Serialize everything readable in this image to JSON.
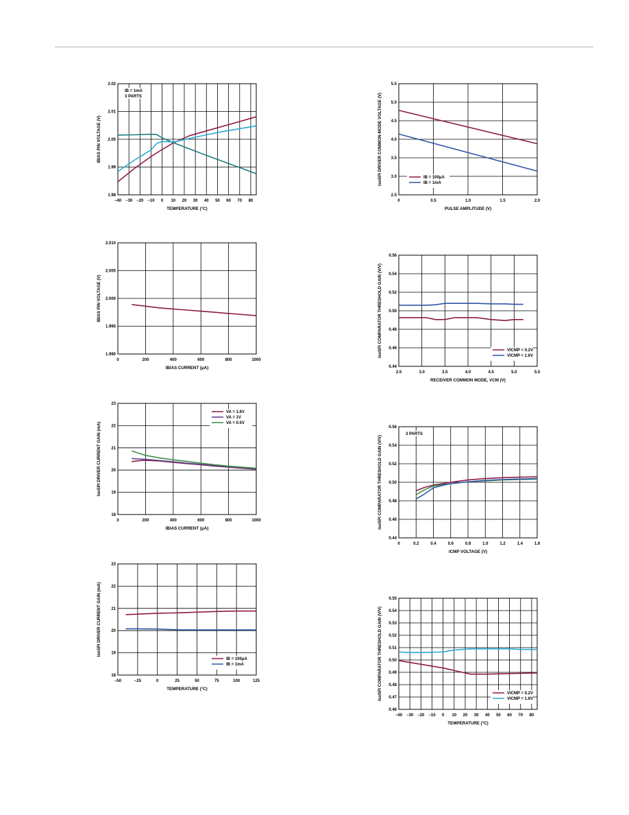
{
  "colors": {
    "red": "#8b1a45",
    "blue": "#2e55a8",
    "teal": "#1c7c7d",
    "cyan": "#29aad4",
    "green": "#3a8f48",
    "purple": "#5c3f8e",
    "grid": "#000000"
  },
  "chart_data": [
    {
      "id": "c1",
      "type": "line",
      "xlabel": "TEMPERATURE (°C)",
      "ylabel": "IBIAS PIN VOLTAGE (V)",
      "xlim": [
        -40,
        85
      ],
      "ylim": [
        1.98,
        2.02
      ],
      "xticks": [
        -40,
        -30,
        -20,
        -10,
        0,
        10,
        20,
        30,
        40,
        50,
        60,
        70,
        80
      ],
      "xticklabels": [
        "−40",
        "−30",
        "−20",
        "−10",
        "0",
        "10",
        "20",
        "30",
        "40",
        "50",
        "60",
        "70",
        "80"
      ],
      "yticks": [
        1.98,
        1.99,
        2.0,
        2.01,
        2.02
      ],
      "yticklabels": [
        "1.98",
        "1.99",
        "2.00",
        "2.01",
        "2.02"
      ],
      "annotation": [
        "IB = 1mA",
        "3 PARTS"
      ],
      "series": [
        {
          "color": "red",
          "x": [
            -40,
            -25,
            -10,
            0,
            10,
            25,
            40,
            55,
            70,
            85
          ],
          "y": [
            1.9847,
            1.9895,
            1.9938,
            1.9963,
            1.9987,
            2.0013,
            2.003,
            2.0047,
            2.0064,
            2.0081
          ]
        },
        {
          "color": "teal",
          "x": [
            -40,
            -25,
            -10,
            -5,
            0,
            10,
            25,
            40,
            55,
            70,
            85
          ],
          "y": [
            2.0015,
            2.0016,
            2.0018,
            2.0017,
            2.0005,
            1.9988,
            1.9965,
            1.9942,
            1.992,
            1.9898,
            1.9876
          ]
        },
        {
          "color": "cyan",
          "x": [
            -40,
            -25,
            -10,
            -5,
            0,
            10,
            25,
            40,
            55,
            70,
            85
          ],
          "y": [
            1.9884,
            1.9925,
            1.9962,
            1.9985,
            1.9992,
            1.999,
            2.0003,
            2.0016,
            2.0028,
            2.0038,
            2.0048
          ]
        }
      ]
    },
    {
      "id": "c2",
      "type": "line",
      "xlabel": "PULSE AMPLITUDE (V)",
      "ylabel": "IsoSPI DRIVER COMMON-MODE VOLTAGE (V)",
      "xlim": [
        0,
        2.0
      ],
      "ylim": [
        2.5,
        5.5
      ],
      "xticks": [
        0,
        0.5,
        1.0,
        1.5,
        2.0
      ],
      "xticklabels": [
        "0",
        "0.5",
        "1.0",
        "1.5",
        "2.0"
      ],
      "yticks": [
        2.5,
        3.0,
        3.5,
        4.0,
        4.5,
        5.0,
        5.5
      ],
      "yticklabels": [
        "2.5",
        "3.0",
        "3.5",
        "4.0",
        "4.5",
        "5.0",
        "5.5"
      ],
      "legend": "bottom-left",
      "series": [
        {
          "name": "IB = 100μA",
          "color": "red",
          "x": [
            0,
            2.0
          ],
          "y": [
            4.78,
            3.88
          ]
        },
        {
          "name": "IB = 1mA",
          "color": "blue",
          "x": [
            0,
            2.0
          ],
          "y": [
            4.14,
            3.14
          ]
        }
      ]
    },
    {
      "id": "c3",
      "type": "line",
      "xlabel": "IBIAS CURRENT (μA)",
      "ylabel": "IBIAS PIN VOLTAGE (V)",
      "xlim": [
        0,
        1000
      ],
      "ylim": [
        1.99,
        2.01
      ],
      "xticks": [
        0,
        200,
        400,
        600,
        800,
        1000
      ],
      "xticklabels": [
        "0",
        "200",
        "400",
        "600",
        "800",
        "1000"
      ],
      "yticks": [
        1.99,
        1.995,
        2.0,
        2.005,
        2.01
      ],
      "yticklabels": [
        "1.990",
        "1.995",
        "2.000",
        "2.005",
        "2.010"
      ],
      "series": [
        {
          "color": "red",
          "x": [
            100,
            200,
            300,
            400,
            500,
            600,
            700,
            800,
            900,
            1000
          ],
          "y": [
            1.9989,
            1.9986,
            1.9983,
            1.9981,
            1.9979,
            1.9977,
            1.9975,
            1.9973,
            1.9971,
            1.9969
          ]
        }
      ]
    },
    {
      "id": "c4",
      "type": "line",
      "xlabel": "RECEIVER COMMON MODE, VCM (V)",
      "ylabel": "IsoSPI COMPARATOR THRESHOLD GAIN (V/V)",
      "xlim": [
        2.5,
        5.5
      ],
      "ylim": [
        0.44,
        0.56
      ],
      "xticks": [
        2.5,
        3.0,
        3.5,
        4.0,
        4.5,
        5.0,
        5.5
      ],
      "xticklabels": [
        "2.5",
        "3.0",
        "3.5",
        "4.0",
        "4.5",
        "5.0",
        "5.5"
      ],
      "yticks": [
        0.44,
        0.46,
        0.48,
        0.5,
        0.52,
        0.54,
        0.56
      ],
      "yticklabels": [
        "0.44",
        "0.46",
        "0.48",
        "0.50",
        "0.52",
        "0.54",
        "0.56"
      ],
      "legend": "bottom-right",
      "series": [
        {
          "name": "VICMP = 0.2V",
          "color": "red",
          "x": [
            2.5,
            2.8,
            3.1,
            3.3,
            3.5,
            3.7,
            3.9,
            4.2,
            4.5,
            4.8,
            5.0,
            5.2
          ],
          "y": [
            0.4925,
            0.4925,
            0.4925,
            0.4905,
            0.4905,
            0.4925,
            0.4925,
            0.4925,
            0.4905,
            0.4895,
            0.4905,
            0.4905
          ]
        },
        {
          "name": "VICMP = 1.6V",
          "color": "blue",
          "x": [
            2.5,
            2.8,
            3.1,
            3.3,
            3.5,
            3.7,
            3.9,
            4.2,
            4.5,
            4.8,
            5.0,
            5.2
          ],
          "y": [
            0.506,
            0.506,
            0.506,
            0.5065,
            0.508,
            0.508,
            0.508,
            0.508,
            0.5075,
            0.5075,
            0.507,
            0.507
          ]
        }
      ]
    },
    {
      "id": "c5",
      "type": "line",
      "xlabel": "IBIAS CURRENT (μA)",
      "ylabel": "IsoSPI DRIVER CURRENT GAIN (mA)",
      "xlim": [
        0,
        1000
      ],
      "ylim": [
        18,
        23
      ],
      "xticks": [
        0,
        200,
        400,
        600,
        800,
        1000
      ],
      "xticklabels": [
        "0",
        "200",
        "400",
        "600",
        "800",
        "1000"
      ],
      "yticks": [
        18,
        19,
        20,
        21,
        22,
        23
      ],
      "yticklabels": [
        "18",
        "19",
        "20",
        "21",
        "22",
        "23"
      ],
      "legend": "top-right",
      "series": [
        {
          "name": "VA = 1.6V",
          "color": "red",
          "x": [
            100,
            150,
            200,
            300,
            400,
            500,
            600,
            700,
            800,
            900,
            1000
          ],
          "y": [
            20.38,
            20.42,
            20.44,
            20.41,
            20.35,
            20.29,
            20.24,
            20.18,
            20.13,
            20.08,
            20.04
          ]
        },
        {
          "name": "VA = 1V",
          "color": "purple",
          "x": [
            100,
            150,
            200,
            300,
            400,
            500,
            600,
            700,
            800,
            900,
            1000
          ],
          "y": [
            20.52,
            20.5,
            20.48,
            20.43,
            20.37,
            20.31,
            20.26,
            20.2,
            20.15,
            20.1,
            20.06
          ]
        },
        {
          "name": "VA = 0.5V",
          "color": "green",
          "x": [
            100,
            150,
            200,
            300,
            400,
            500,
            600,
            700,
            800,
            900,
            1000
          ],
          "y": [
            20.86,
            20.76,
            20.66,
            20.55,
            20.46,
            20.39,
            20.31,
            20.24,
            20.18,
            20.13,
            20.08
          ]
        }
      ]
    },
    {
      "id": "c6",
      "type": "line",
      "xlabel": "ICMP VOLTAGE (V)",
      "ylabel": "IsoSPI COMPARATOR THRESHOLD GAIN (V/V)",
      "xlim": [
        0,
        1.6
      ],
      "ylim": [
        0.44,
        0.56
      ],
      "xticks": [
        0,
        0.2,
        0.4,
        0.6,
        0.8,
        1.0,
        1.2,
        1.4,
        1.6
      ],
      "xticklabels": [
        "0",
        "0.2",
        "0.4",
        "0.6",
        "0.8",
        "1.0",
        "1.2",
        "1.4",
        "1.6"
      ],
      "yticks": [
        0.44,
        0.46,
        0.48,
        0.5,
        0.52,
        0.54,
        0.56
      ],
      "yticklabels": [
        "0.44",
        "0.46",
        "0.48",
        "0.50",
        "0.52",
        "0.54",
        "0.56"
      ],
      "annotation": [
        "3 PARTS"
      ],
      "series": [
        {
          "color": "red",
          "x": [
            0.2,
            0.3,
            0.4,
            0.5,
            0.6,
            0.8,
            1.0,
            1.2,
            1.4,
            1.6
          ],
          "y": [
            0.491,
            0.4945,
            0.497,
            0.4985,
            0.5,
            0.5025,
            0.504,
            0.505,
            0.5055,
            0.506
          ]
        },
        {
          "color": "green",
          "x": [
            0.2,
            0.3,
            0.4,
            0.5,
            0.6,
            0.8,
            1.0,
            1.2,
            1.4,
            1.6
          ],
          "y": [
            0.4865,
            0.492,
            0.496,
            0.4975,
            0.4985,
            0.5005,
            0.5015,
            0.5025,
            0.503,
            0.5035
          ]
        },
        {
          "color": "blue",
          "x": [
            0.2,
            0.3,
            0.4,
            0.5,
            0.6,
            0.8,
            1.0,
            1.2,
            1.4,
            1.6
          ],
          "y": [
            0.482,
            0.4875,
            0.494,
            0.4965,
            0.4985,
            0.5005,
            0.502,
            0.503,
            0.5035,
            0.504
          ]
        }
      ]
    },
    {
      "id": "c7",
      "type": "line",
      "xlabel": "TEMPERATURE (°C)",
      "ylabel": "IsoSPI DRIVER CURRENT GAIN (mA)",
      "xlim": [
        -50,
        125
      ],
      "ylim": [
        18,
        23
      ],
      "xticks": [
        -50,
        -25,
        0,
        25,
        50,
        75,
        100,
        125
      ],
      "xticklabels": [
        "−50",
        "−25",
        "0",
        "25",
        "50",
        "75",
        "100",
        "125"
      ],
      "yticks": [
        18,
        19,
        20,
        21,
        22,
        23
      ],
      "yticklabels": [
        "18",
        "19",
        "20",
        "21",
        "22",
        "23"
      ],
      "legend": "bottom-right",
      "series": [
        {
          "name": "IB = 100μA",
          "color": "red",
          "x": [
            -40,
            -25,
            0,
            25,
            50,
            75,
            100,
            125
          ],
          "y": [
            20.72,
            20.74,
            20.78,
            20.8,
            20.83,
            20.86,
            20.88,
            20.88
          ]
        },
        {
          "name": "IB = 1mA",
          "color": "blue",
          "x": [
            -40,
            -25,
            0,
            25,
            50,
            75,
            100,
            125
          ],
          "y": [
            20.08,
            20.08,
            20.07,
            20.04,
            20.03,
            20.03,
            20.03,
            20.03
          ]
        }
      ]
    },
    {
      "id": "c8",
      "type": "line",
      "xlabel": "TEMPERATURE (°C)",
      "ylabel": "IsoSPI COMPARATOR THRESHOLD GAIN (V/V)",
      "xlim": [
        -40,
        85
      ],
      "ylim": [
        0.46,
        0.55
      ],
      "xticks": [
        -40,
        -30,
        -20,
        -10,
        0,
        10,
        20,
        30,
        40,
        50,
        60,
        70,
        80
      ],
      "xticklabels": [
        "−40",
        "−30",
        "−20",
        "−10",
        "0",
        "10",
        "20",
        "30",
        "40",
        "50",
        "60",
        "70",
        "80"
      ],
      "yticks": [
        0.46,
        0.47,
        0.48,
        0.49,
        0.5,
        0.51,
        0.52,
        0.53,
        0.54,
        0.55
      ],
      "yticklabels": [
        "0.46",
        "0.47",
        "0.48",
        "0.49",
        "0.50",
        "0.51",
        "0.52",
        "0.53",
        "0.54",
        "0.55"
      ],
      "legend": "bottom-right",
      "series": [
        {
          "name": "VICMP = 0.2V",
          "color": "red",
          "x": [
            -40,
            -20,
            0,
            15,
            25,
            40,
            60,
            85
          ],
          "y": [
            0.4995,
            0.4965,
            0.4935,
            0.4905,
            0.4885,
            0.4885,
            0.489,
            0.4895
          ]
        },
        {
          "name": "VICMP = 1.6V",
          "color": "cyan",
          "x": [
            -40,
            -30,
            -20,
            0,
            10,
            25,
            40,
            60,
            70,
            85
          ],
          "y": [
            0.5065,
            0.506,
            0.506,
            0.5065,
            0.508,
            0.509,
            0.509,
            0.509,
            0.5085,
            0.5085
          ]
        }
      ]
    }
  ]
}
